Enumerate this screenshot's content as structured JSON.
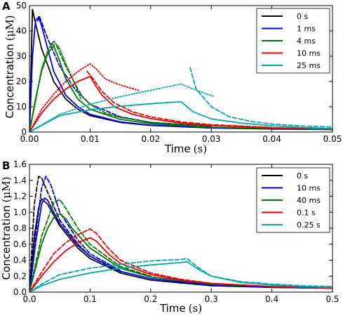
{
  "chart_data": [
    {
      "panel": "A",
      "type": "line",
      "xlabel": "Time",
      "xunit": "(s)",
      "ylabel": "Concentration",
      "yunit": "(μM)",
      "xlim": [
        0,
        0.05
      ],
      "ylim": [
        0,
        50
      ],
      "xticks": [
        0.0,
        0.01,
        0.02,
        0.03,
        0.04,
        0.05
      ],
      "xtick_labels": [
        "0.00",
        "0.01",
        "0.02",
        "0.03",
        "0.04",
        "0.05"
      ],
      "yticks": [
        0,
        10,
        20,
        30,
        40,
        50
      ],
      "ytick_labels": [
        "0",
        "10",
        "20",
        "30",
        "40",
        "50"
      ],
      "legend_position": "top-right",
      "series": [
        {
          "name": "0 s",
          "color": "#000000",
          "style": "solid",
          "x": [
            0,
            0.0005,
            0.001,
            0.002,
            0.004,
            0.006,
            0.008,
            0.01,
            0.015,
            0.02,
            0.03,
            0.04,
            0.05
          ],
          "y": [
            0,
            48.5,
            43,
            33,
            20,
            13,
            9,
            6.5,
            3.8,
            2.6,
            1.6,
            1.2,
            1.0
          ]
        },
        {
          "name": "1 ms",
          "color": "#0000ee",
          "style": "solid",
          "x": [
            0,
            0.0005,
            0.001,
            0.0015,
            0.002,
            0.004,
            0.006,
            0.008,
            0.01,
            0.015,
            0.02,
            0.03,
            0.04,
            0.05
          ],
          "y": [
            0,
            30,
            44,
            45.5,
            42,
            24,
            14.5,
            10,
            7,
            4,
            2.7,
            1.7,
            1.3,
            1.0
          ]
        },
        {
          "name": "",
          "color": "#0000ee",
          "style": "dashed",
          "x": [
            0.0014,
            0.0016,
            0.003,
            0.005,
            0.0075,
            0.01,
            0.015,
            0.02,
            0.03
          ],
          "y": [
            44,
            46,
            37,
            26,
            17,
            11,
            6,
            3.8,
            2.2
          ]
        },
        {
          "name": "4 ms",
          "color": "#007700",
          "style": "solid",
          "x": [
            0,
            0.001,
            0.002,
            0.003,
            0.004,
            0.005,
            0.006,
            0.008,
            0.01,
            0.015,
            0.02,
            0.03,
            0.04,
            0.05
          ],
          "y": [
            0,
            13,
            24,
            31,
            34,
            28,
            21,
            13,
            9,
            5,
            3.3,
            1.9,
            1.4,
            1.1
          ]
        },
        {
          "name": "",
          "color": "#007700",
          "style": "dashed",
          "x": [
            0.0035,
            0.0045,
            0.006,
            0.008,
            0.0087,
            0.01,
            0.0125,
            0.015,
            0.02,
            0.03
          ],
          "y": [
            35,
            34,
            26,
            17,
            14,
            11,
            7.5,
            5.8,
            3.8,
            2.1
          ]
        },
        {
          "name": "",
          "color": "#007700",
          "style": "dotted",
          "x": [
            0,
            0.001,
            0.002,
            0.003,
            0.004,
            0.005,
            0.006,
            0.0075,
            0.0085
          ],
          "y": [
            0,
            12,
            25,
            32,
            36,
            33,
            27,
            19,
            13
          ]
        },
        {
          "name": "10 ms",
          "color": "#ee0000",
          "style": "solid",
          "x": [
            0,
            0.002,
            0.004,
            0.006,
            0.008,
            0.01,
            0.011,
            0.012,
            0.014,
            0.017,
            0.02,
            0.025,
            0.03,
            0.04,
            0.05
          ],
          "y": [
            0,
            7.5,
            13,
            17,
            20,
            22,
            18,
            14.5,
            10,
            7,
            5.3,
            3.5,
            2.6,
            1.7,
            1.2
          ]
        },
        {
          "name": "",
          "color": "#ee0000",
          "style": "dashed",
          "x": [
            0.0095,
            0.0105,
            0.012,
            0.014,
            0.017,
            0.02,
            0.025,
            0.03,
            0.04
          ],
          "y": [
            24,
            21,
            16,
            11.5,
            8,
            6,
            4,
            2.9,
            1.8
          ]
        },
        {
          "name": "",
          "color": "#ee0000",
          "style": "dotted",
          "x": [
            0,
            0.002,
            0.004,
            0.006,
            0.008,
            0.01,
            0.011,
            0.0125,
            0.0145,
            0.0165,
            0.018
          ],
          "y": [
            0,
            9,
            15,
            20,
            24,
            27,
            25,
            21,
            19,
            17.5,
            16.5
          ]
        },
        {
          "name": "25 ms",
          "color": "#00aaaa",
          "style": "solid",
          "x": [
            0,
            0.005,
            0.01,
            0.015,
            0.02,
            0.025,
            0.027,
            0.03,
            0.035,
            0.04,
            0.045,
            0.05
          ],
          "y": [
            0,
            6.5,
            8.8,
            10.2,
            11.2,
            12,
            8,
            5.2,
            3.5,
            2.5,
            1.8,
            1.4
          ]
        },
        {
          "name": "",
          "color": "#00aaaa",
          "style": "dashed",
          "x": [
            0.0265,
            0.0275,
            0.03,
            0.033,
            0.037,
            0.04,
            0.045,
            0.05
          ],
          "y": [
            25.5,
            17,
            10,
            6,
            4,
            3.2,
            2.4,
            2.0
          ]
        },
        {
          "name": "",
          "color": "#00aaaa",
          "style": "dotted",
          "x": [
            0,
            0.005,
            0.01,
            0.015,
            0.02,
            0.025,
            0.027,
            0.0305
          ],
          "y": [
            0,
            7,
            11,
            14,
            16.5,
            19,
            17,
            14
          ]
        }
      ]
    },
    {
      "panel": "B",
      "type": "line",
      "xlabel": "Time",
      "xunit": "(s)",
      "ylabel": "Concentration",
      "yunit": "(μM)",
      "xlim": [
        0,
        0.5
      ],
      "ylim": [
        0,
        1.6
      ],
      "xticks": [
        0.0,
        0.1,
        0.2,
        0.3,
        0.4,
        0.5
      ],
      "xtick_labels": [
        "0.0",
        "0.1",
        "0.2",
        "0.3",
        "0.4",
        "0.5"
      ],
      "yticks": [
        0,
        0.2,
        0.4,
        0.6,
        0.8,
        1.0,
        1.2,
        1.4,
        1.6
      ],
      "ytick_labels": [
        "0.0",
        "0.2",
        "0.4",
        "0.6",
        "0.8",
        "1.0",
        "1.2",
        "1.4",
        "1.6"
      ],
      "legend_position": "top-right",
      "series": [
        {
          "name": "0 s",
          "color": "#000000",
          "style": "solid",
          "x": [
            0,
            0.008,
            0.015,
            0.02,
            0.03,
            0.05,
            0.08,
            0.1,
            0.15,
            0.2,
            0.3,
            0.4,
            0.5
          ],
          "y": [
            0,
            0.7,
            1.05,
            1.17,
            1.1,
            0.83,
            0.55,
            0.42,
            0.24,
            0.15,
            0.08,
            0.06,
            0.05
          ]
        },
        {
          "name": "",
          "color": "#000000",
          "style": "dashed",
          "x": [
            0,
            0.008,
            0.015,
            0.02,
            0.03,
            0.05,
            0.08,
            0.1,
            0.15
          ],
          "y": [
            0,
            1.1,
            1.45,
            1.43,
            1.25,
            0.9,
            0.6,
            0.45,
            0.25
          ]
        },
        {
          "name": "10 ms",
          "color": "#0000ee",
          "style": "solid",
          "x": [
            0,
            0.01,
            0.02,
            0.025,
            0.03,
            0.04,
            0.05,
            0.08,
            0.1,
            0.15,
            0.2,
            0.3,
            0.4,
            0.5
          ],
          "y": [
            0,
            0.6,
            1.1,
            1.18,
            1.15,
            1.0,
            0.86,
            0.58,
            0.45,
            0.26,
            0.17,
            0.09,
            0.06,
            0.05
          ]
        },
        {
          "name": "",
          "color": "#0000ee",
          "style": "dashed",
          "x": [
            0,
            0.01,
            0.02,
            0.027,
            0.035,
            0.05,
            0.08,
            0.1,
            0.15
          ],
          "y": [
            0,
            0.7,
            1.3,
            1.45,
            1.35,
            1.0,
            0.65,
            0.48,
            0.27
          ]
        },
        {
          "name": "40 ms",
          "color": "#007700",
          "style": "solid",
          "x": [
            0,
            0.01,
            0.02,
            0.03,
            0.04,
            0.05,
            0.06,
            0.07,
            0.1,
            0.15,
            0.2,
            0.3,
            0.4,
            0.5
          ],
          "y": [
            0,
            0.3,
            0.6,
            0.8,
            0.93,
            0.98,
            0.92,
            0.8,
            0.55,
            0.3,
            0.19,
            0.1,
            0.07,
            0.05
          ]
        },
        {
          "name": "",
          "color": "#007700",
          "style": "dashed",
          "x": [
            0,
            0.02,
            0.04,
            0.05,
            0.06,
            0.08,
            0.1,
            0.15,
            0.2
          ],
          "y": [
            0,
            0.7,
            1.12,
            1.16,
            1.05,
            0.8,
            0.6,
            0.32,
            0.2
          ]
        },
        {
          "name": "0.1 s",
          "color": "#ee0000",
          "style": "solid",
          "x": [
            0,
            0.02,
            0.04,
            0.06,
            0.08,
            0.1,
            0.11,
            0.13,
            0.15,
            0.2,
            0.25,
            0.3,
            0.4,
            0.5
          ],
          "y": [
            0,
            0.2,
            0.38,
            0.52,
            0.62,
            0.68,
            0.64,
            0.48,
            0.36,
            0.22,
            0.15,
            0.11,
            0.07,
            0.05
          ]
        },
        {
          "name": "",
          "color": "#ee0000",
          "style": "dashed",
          "x": [
            0,
            0.02,
            0.04,
            0.06,
            0.08,
            0.1,
            0.11,
            0.13,
            0.15,
            0.2,
            0.25,
            0.3
          ],
          "y": [
            0,
            0.25,
            0.48,
            0.62,
            0.72,
            0.79,
            0.74,
            0.55,
            0.4,
            0.24,
            0.16,
            0.11
          ]
        },
        {
          "name": "0.25 s",
          "color": "#00aaaa",
          "style": "solid",
          "x": [
            0,
            0.02,
            0.05,
            0.1,
            0.15,
            0.2,
            0.25,
            0.26,
            0.28,
            0.3,
            0.35,
            0.4,
            0.45,
            0.5
          ],
          "y": [
            0,
            0.08,
            0.16,
            0.24,
            0.3,
            0.34,
            0.37,
            0.38,
            0.28,
            0.2,
            0.12,
            0.09,
            0.07,
            0.06
          ]
        },
        {
          "name": "",
          "color": "#00aaaa",
          "style": "dashed",
          "x": [
            0,
            0.02,
            0.05,
            0.1,
            0.15,
            0.2,
            0.25,
            0.26,
            0.28,
            0.3,
            0.35,
            0.4,
            0.45,
            0.5
          ],
          "y": [
            0,
            0.1,
            0.22,
            0.3,
            0.35,
            0.39,
            0.41,
            0.42,
            0.3,
            0.2,
            0.13,
            0.1,
            0.08,
            0.07
          ]
        }
      ]
    }
  ]
}
